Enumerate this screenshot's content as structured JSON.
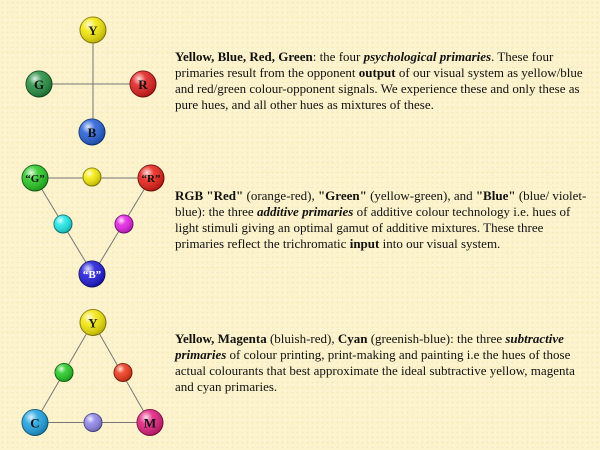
{
  "psychological": {
    "diagram": {
      "nodes": [
        {
          "label": "Y",
          "color": "#f2e600"
        },
        {
          "label": "G",
          "color": "#1f8a3c"
        },
        {
          "label": "R",
          "color": "#e01818"
        },
        {
          "label": "B",
          "color": "#1f5bd6"
        }
      ]
    },
    "text": {
      "t1": "Yellow, Blue, Red, Green",
      "t2": ": the four ",
      "t3": "psychological primaries",
      "t4": ". These four primaries result from the opponent ",
      "t5": "output",
      "t6": " of our visual system as  yellow/blue and red/green colour-opponent signals. We experience these and only these as pure hues, and all other hues as mixtures of these."
    }
  },
  "additive": {
    "diagram": {
      "nodes": [
        {
          "label": "“G”",
          "color": "#22c81e"
        },
        {
          "label": "“R”",
          "color": "#e81a10"
        },
        {
          "label": "“B”",
          "color": "#1a14d8"
        },
        {
          "label": "",
          "color": "#f4ea00"
        },
        {
          "label": "",
          "color": "#18e6e6"
        },
        {
          "label": "",
          "color": "#e21ae2"
        }
      ]
    },
    "text": {
      "t1": "RGB \"Red\"",
      "t2": " (orange-red), ",
      "t3": "\"Green\"",
      "t4": " (yellow-green), and ",
      "t5": "\"Blue\"",
      "t6": " (blue/ violet-blue): the three ",
      "t7": "additive primaries",
      "t8": " of additive colour technology i.e. hues of light stimuli giving an optimal gamut of additive mixtures. These three primaries reflect the trichromatic ",
      "t9": "input",
      "t10": " into our visual system."
    }
  },
  "subtractive": {
    "diagram": {
      "nodes": [
        {
          "label": "Y",
          "color": "#f2e600"
        },
        {
          "label": "C",
          "color": "#18a0e0"
        },
        {
          "label": "M",
          "color": "#e0187a"
        },
        {
          "label": "",
          "color": "#1ec81e"
        },
        {
          "label": "",
          "color": "#ee3212"
        },
        {
          "label": "",
          "color": "#8c82e8"
        }
      ]
    },
    "text": {
      "t1": "Yellow, Magenta",
      "t2": " (bluish-red), ",
      "t3": "Cyan",
      "t4": " (greenish-blue): the three ",
      "t5": "subtractive primaries",
      "t6": " of colour printing, print-making and painting i.e the hues of those actual colourants that best approximate the ideal subtractive yellow, magenta and cyan primaries."
    }
  }
}
